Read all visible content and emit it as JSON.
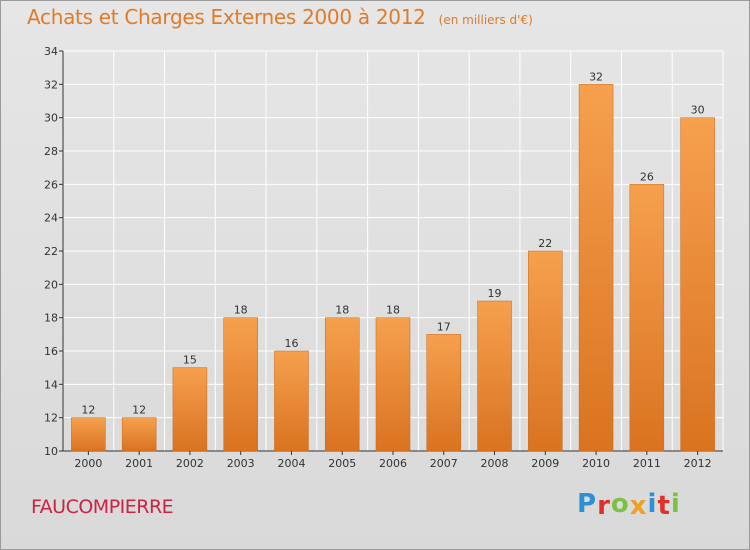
{
  "header": {
    "title": "Achats et Charges Externes 2000 à 2012",
    "subtitle": "(en milliers d'€)"
  },
  "footer": {
    "commune": "FAUCOMPIERRE",
    "logo_letters": [
      "P",
      "r",
      "o",
      "x",
      "i",
      "t",
      "i"
    ],
    "logo_colors": [
      "#2e8fd4",
      "#e0302a",
      "#7cc242",
      "#f0a020",
      "#2e8fd4",
      "#e0302a",
      "#7cc242"
    ]
  },
  "colors": {
    "bar_light": "#f6a04e",
    "bar_dark": "#d97320",
    "grid": "#ffffff",
    "axis": "#333333"
  },
  "chart_data": {
    "type": "bar",
    "title": "Achats et Charges Externes 2000 à 2012",
    "subtitle": "(en milliers d'€)",
    "xlabel": "",
    "ylabel": "",
    "categories": [
      "2000",
      "2001",
      "2002",
      "2003",
      "2004",
      "2005",
      "2006",
      "2007",
      "2008",
      "2009",
      "2010",
      "2011",
      "2012"
    ],
    "values": [
      12,
      12,
      15,
      18,
      16,
      18,
      18,
      17,
      19,
      22,
      32,
      26,
      30
    ],
    "ylim": [
      10,
      34
    ],
    "yticks": [
      10,
      12,
      14,
      16,
      18,
      20,
      22,
      24,
      26,
      28,
      30,
      32,
      34
    ],
    "grid": true,
    "data_labels": true
  }
}
